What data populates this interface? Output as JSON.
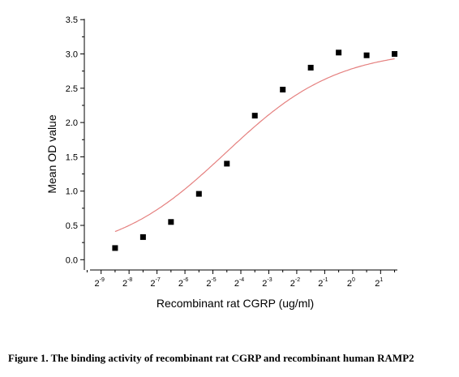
{
  "caption": "Figure 1. The binding activity of recombinant rat CGRP and recombinant human RAMP2",
  "chart_data": {
    "type": "scatter",
    "xlabel": "Recombinant rat CGRP (ug/ml)",
    "ylabel": "Mean OD value",
    "x_scale": "log2",
    "xlim_exponent": [
      -9.6,
      1.6
    ],
    "ylim": [
      -0.15,
      3.55
    ],
    "y_ticks": [
      "0.0",
      "0.5",
      "1.0",
      "1.5",
      "2.0",
      "2.5",
      "3.0",
      "3.5"
    ],
    "x_tick_labels": [
      {
        "base": "2",
        "exp": "-9"
      },
      {
        "base": "2",
        "exp": "-8"
      },
      {
        "base": "2",
        "exp": "-7"
      },
      {
        "base": "2",
        "exp": "-6"
      },
      {
        "base": "2",
        "exp": "-5"
      },
      {
        "base": "2",
        "exp": "-4"
      },
      {
        "base": "2",
        "exp": "-3"
      },
      {
        "base": "2",
        "exp": "-2"
      },
      {
        "base": "2",
        "exp": "-1"
      },
      {
        "base": "2",
        "exp": "0"
      },
      {
        "base": "2",
        "exp": "1"
      }
    ],
    "series": [
      {
        "marker": "square",
        "color": "#000000",
        "x_exponent": [
          -8.5,
          -7.5,
          -6.5,
          -5.5,
          -4.5,
          -3.5,
          -2.5,
          -1.5,
          -0.5,
          0.5,
          1.5
        ],
        "y": [
          0.17,
          0.33,
          0.55,
          0.96,
          1.4,
          2.1,
          2.48,
          2.8,
          3.02,
          2.98,
          3.0
        ]
      }
    ],
    "fit": {
      "type": "sigmoid",
      "color": "#e5807f",
      "x_range_exponent": [
        -8.5,
        1.5
      ],
      "bottom": 0.04,
      "top": 3.07,
      "ec50_exponent": -4.55,
      "hill_slope": 0.72
    },
    "grid": false,
    "legend": "none"
  }
}
